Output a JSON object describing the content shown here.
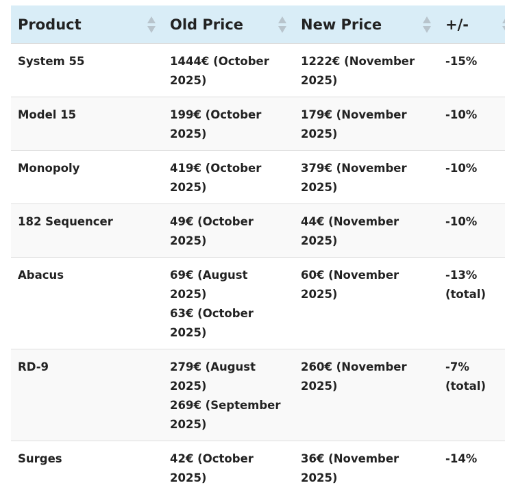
{
  "table": {
    "headers": [
      "Product",
      "Old Price",
      "New Price",
      "+/-"
    ],
    "rows": [
      [
        "System 55",
        [
          "1444€ (October 2025)"
        ],
        "1222€ (November 2025)",
        "-15%"
      ],
      [
        "Model 15",
        [
          "199€ (October 2025)"
        ],
        "179€ (November 2025)",
        "-10%"
      ],
      [
        "Monopoly",
        [
          "419€ (October 2025)"
        ],
        "379€ (November 2025)",
        "-10%"
      ],
      [
        "182 Sequencer",
        [
          "49€ (October 2025)"
        ],
        "44€ (November 2025)",
        "-10%"
      ],
      [
        "Abacus",
        [
          "69€ (August 2025)",
          "63€ (October 2025)"
        ],
        "60€ (November 2025)",
        "-13% (total)"
      ],
      [
        "RD-9",
        [
          "279€ (August 2025)",
          "269€ (September 2025)"
        ],
        "260€ (November 2025)",
        "-7% (total)"
      ],
      [
        "Surges",
        [
          "42€ (October 2025)"
        ],
        "36€ (November 2025)",
        "-14%"
      ]
    ]
  }
}
